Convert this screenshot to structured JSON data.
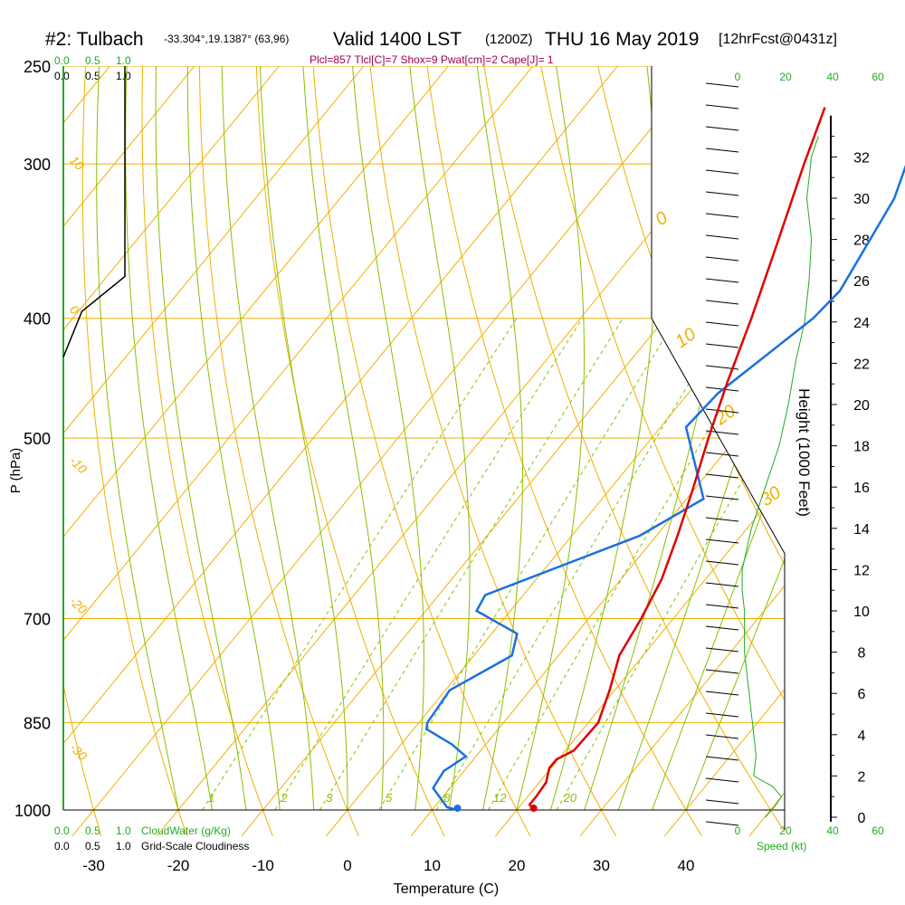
{
  "header": {
    "station": "#2: Tulbach",
    "coords": "-33.304°,19.1387° (63,96)",
    "valid": "Valid 1400 LST",
    "zulu": "(1200Z)",
    "date": "THU 16 May 2019",
    "forecast": "[12hrFcst@0431z]"
  },
  "indices": "Plcl=857 Tlcl[C]=7 Shox=9 Pwat[cm]=2 Cape[J]= 1",
  "colors": {
    "isotherm": "#f0b000",
    "adiabat": "#f0b000",
    "moist_adiabat": "#88c000",
    "mixing_ratio": "#88c000",
    "temperature": "#e00000",
    "dewpoint": "#1a70e0",
    "wind_speed": "#22aa22",
    "indices": "#990055",
    "cloud": "#000000"
  },
  "scales": {
    "cloud_water_top": [
      "0.0",
      "0.5",
      "1.0"
    ],
    "cloudiness_top": [
      "0.0",
      "0.5",
      "1.0"
    ],
    "cloud_water_bottom": [
      "0.0",
      "0.5",
      "1.0"
    ],
    "cloudiness_bottom": [
      "0.0",
      "0.5",
      "1.0"
    ],
    "cloud_water_label": "CloudWater (g/Kg)",
    "cloudiness_label": "Grid-Scale Cloudiness",
    "speed_ticks": [
      "0",
      "20",
      "40",
      "60"
    ],
    "speed_label": "Speed (kt)"
  },
  "chart_data": {
    "type": "line",
    "title": "Skew-T sounding",
    "xlabel": "Temperature (C)",
    "ylabel": "P (hPa)",
    "y2label": "Height (1000 Feet)",
    "x_ticks": [
      -30,
      -20,
      -10,
      0,
      10,
      20,
      30,
      40
    ],
    "p_ticks": [
      250,
      300,
      400,
      500,
      700,
      850,
      1000
    ],
    "height_ticks": [
      0,
      2,
      4,
      6,
      8,
      10,
      12,
      14,
      16,
      18,
      20,
      22,
      24,
      26,
      28,
      30,
      32
    ],
    "theta_labels": [
      "10",
      "0",
      "-10",
      "-20",
      "-30"
    ],
    "theta_e_labels": [
      "0",
      "10",
      "20",
      "30"
    ],
    "mixing_ratio_labels": [
      "1",
      "2",
      "3",
      "5",
      "8",
      "12",
      "20"
    ],
    "series": [
      {
        "name": "Temperature",
        "points": [
          [
            1000,
            22.0
          ],
          [
            990,
            21.0
          ],
          [
            975,
            21.0
          ],
          [
            950,
            20.8
          ],
          [
            925,
            19.8
          ],
          [
            910,
            19.8
          ],
          [
            895,
            21.0
          ],
          [
            850,
            21.2
          ],
          [
            800,
            19.4
          ],
          [
            750,
            17.2
          ],
          [
            700,
            16.2
          ],
          [
            650,
            14.8
          ],
          [
            600,
            12.5
          ],
          [
            550,
            9.8
          ],
          [
            500,
            6.7
          ],
          [
            450,
            3.5
          ],
          [
            400,
            0.2
          ],
          [
            350,
            -3.8
          ],
          [
            300,
            -8.5
          ],
          [
            270,
            -11.5
          ]
        ]
      },
      {
        "name": "Dewpoint",
        "points": [
          [
            1000,
            13.0
          ],
          [
            995,
            11.5
          ],
          [
            960,
            8.0
          ],
          [
            930,
            7.6
          ],
          [
            905,
            8.8
          ],
          [
            885,
            6.0
          ],
          [
            860,
            1.5
          ],
          [
            850,
            1.0
          ],
          [
            800,
            0.5
          ],
          [
            750,
            4.5
          ],
          [
            720,
            3.0
          ],
          [
            690,
            -4.0
          ],
          [
            670,
            -4.5
          ],
          [
            600,
            8.0
          ],
          [
            560,
            12.0
          ],
          [
            490,
            3.0
          ],
          [
            460,
            3.5
          ],
          [
            400,
            7.5
          ],
          [
            380,
            8.0
          ],
          [
            320,
            5.5
          ],
          [
            270,
            0.5
          ]
        ]
      },
      {
        "name": "Cloudiness",
        "points": [
          [
            250,
            1.0
          ],
          [
            370,
            1.0
          ],
          [
            395,
            0.3
          ],
          [
            430,
            0.0
          ]
        ]
      },
      {
        "name": "Wind speed",
        "points": [
          [
            0,
            12
          ],
          [
            0.5,
            16
          ],
          [
            1,
            19
          ],
          [
            1.5,
            15
          ],
          [
            2,
            7
          ],
          [
            3,
            8
          ],
          [
            4,
            7
          ],
          [
            5,
            6
          ],
          [
            6,
            5
          ],
          [
            7,
            4
          ],
          [
            8,
            3
          ],
          [
            10,
            3
          ],
          [
            11,
            2
          ],
          [
            12,
            2
          ],
          [
            13,
            4
          ],
          [
            14,
            6
          ],
          [
            16,
            12
          ],
          [
            18,
            18
          ],
          [
            20,
            22
          ],
          [
            22,
            25
          ],
          [
            24,
            29
          ],
          [
            26,
            31
          ],
          [
            28,
            32
          ],
          [
            30,
            30
          ],
          [
            32,
            32
          ],
          [
            33,
            35
          ]
        ]
      }
    ],
    "surface": {
      "temperature": 22.0,
      "dewpoint": 13.0
    }
  }
}
